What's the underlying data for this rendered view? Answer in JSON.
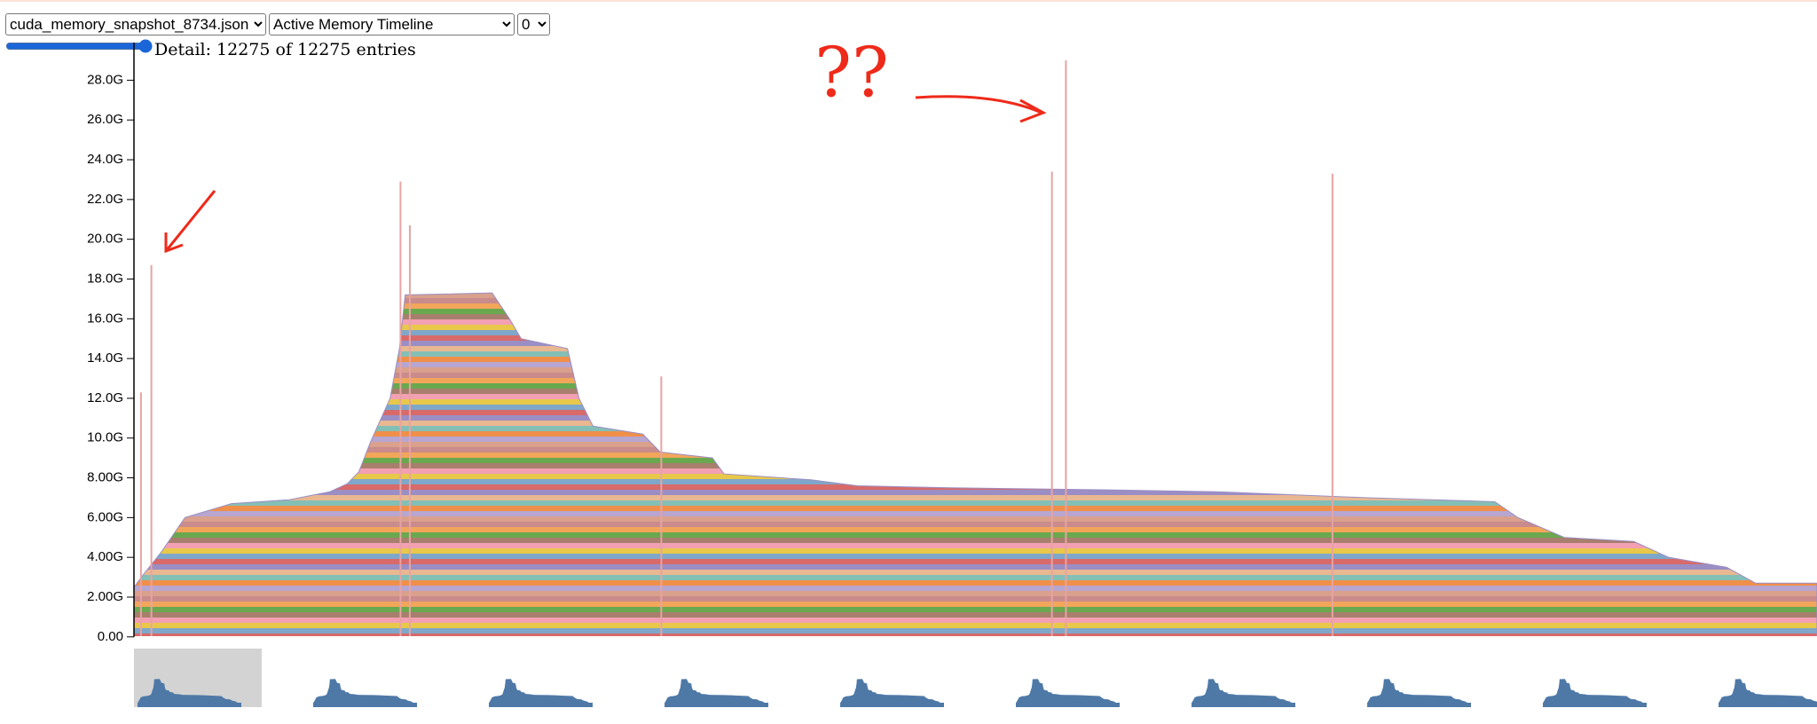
{
  "controls": {
    "file_select": "cuda_memory_snapshot_8734.json",
    "view_select": "Active Memory Timeline",
    "device_select": "0",
    "detail": "Detail: 12275 of 12275 entries"
  },
  "chart_data": {
    "type": "area",
    "annotation": "??",
    "xlim": [
      0,
      12275
    ],
    "ylim": [
      0,
      29
    ],
    "yticks": [
      {
        "value": 0,
        "label": "0.00"
      },
      {
        "value": 2,
        "label": "2.00G"
      },
      {
        "value": 4,
        "label": "4.00G"
      },
      {
        "value": 6,
        "label": "6.00G"
      },
      {
        "value": 8,
        "label": "8.00G"
      },
      {
        "value": 10,
        "label": "10.0G"
      },
      {
        "value": 12,
        "label": "12.0G"
      },
      {
        "value": 14,
        "label": "14.0G"
      },
      {
        "value": 16,
        "label": "16.0G"
      },
      {
        "value": 18,
        "label": "18.0G"
      },
      {
        "value": 20,
        "label": "20.0G"
      },
      {
        "value": 22,
        "label": "22.0G"
      },
      {
        "value": 24,
        "label": "24.0G"
      },
      {
        "value": 26,
        "label": "26.0G"
      },
      {
        "value": 28,
        "label": "28.0G"
      }
    ],
    "x": [
      0,
      76,
      203,
      372,
      710,
      1133,
      1429,
      1556,
      1640,
      1725,
      1868,
      1936,
      1978,
      2612,
      2739,
      2824,
      3162,
      3246,
      3348,
      3711,
      3838,
      4219,
      4303,
      4937,
      5275,
      5952,
      7050,
      7896,
      8995,
      9925,
      10094,
      10432,
      10939,
      11193,
      11616,
      11827,
      12275
    ],
    "series": [
      {
        "color": "#9b8ec4",
        "values": [
          2.5,
          3.2,
          4.3,
          6.0,
          6.7,
          6.9,
          7.3,
          7.7,
          8.3,
          9.8,
          12.0,
          14.5,
          17.2,
          17.3,
          16.0,
          15.0,
          14.5,
          12.0,
          10.6,
          10.2,
          9.3,
          9.0,
          8.2,
          7.9,
          7.6,
          7.5,
          7.4,
          7.3,
          7.0,
          6.8,
          6.0,
          5.0,
          4.8,
          4.0,
          3.5,
          2.7,
          2.7
        ]
      },
      {
        "color": "#e7a3a3",
        "x": [
          51,
          127,
          1944,
          2012,
          3846,
          6695,
          6797,
          8741
        ],
        "values": [
          12.3,
          18.7,
          22.9,
          20.7,
          13.1,
          23.4,
          29.0,
          23.3
        ]
      }
    ]
  }
}
